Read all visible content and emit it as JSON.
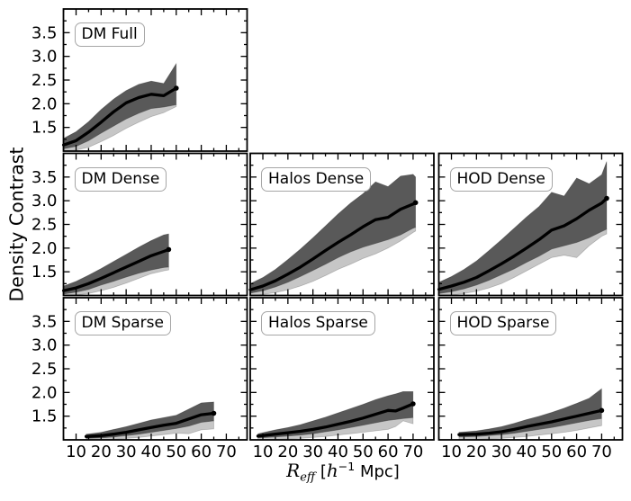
{
  "figure": {
    "ylabel": "Density Contrast",
    "xlabel_parts": {
      "r": "R",
      "sub": "eff",
      "open": " [",
      "h": "h",
      "sup": "−1",
      "close": " Mpc]"
    },
    "colors": {
      "band_dark": "#595959",
      "band_light": "#c6c6c6",
      "line": "#000000",
      "frame": "#000000",
      "label_box_border": "#a6a6a6",
      "background": "#ffffff"
    }
  },
  "chart_data": {
    "type": "line",
    "title": "",
    "xlabel": "R_eff [h^-1 Mpc]",
    "ylabel": "Density Contrast",
    "xlim": [
      4.96,
      78.3
    ],
    "ylim": [
      1.0,
      4.0
    ],
    "xticks": [
      10,
      20,
      30,
      40,
      50,
      60,
      70
    ],
    "xticklabels": [
      "10",
      "20",
      "30",
      "40",
      "50",
      "60",
      "70"
    ],
    "yticks": [
      1.5,
      2.0,
      2.5,
      3.0,
      3.5
    ],
    "yticklabels": [
      "1.5",
      "2.0",
      "2.5",
      "3.0",
      "3.5"
    ],
    "x_minor_step": 5,
    "y_minor_step": 0.25,
    "grid": false,
    "legend": "none",
    "band_description": "each panel: thick black median line, dark grey band around it, light grey band extending below",
    "panels": [
      {
        "label": "DM Full",
        "row": 0,
        "col": 0,
        "x": [
          5,
          10,
          15,
          20,
          25,
          30,
          35,
          40,
          45,
          50
        ],
        "median": [
          1.13,
          1.22,
          1.4,
          1.61,
          1.83,
          2.02,
          2.13,
          2.2,
          2.17,
          2.33
        ],
        "band_hi": [
          1.27,
          1.41,
          1.62,
          1.88,
          2.1,
          2.28,
          2.41,
          2.48,
          2.43,
          2.85
        ],
        "band_lo": [
          1.05,
          1.1,
          1.22,
          1.38,
          1.53,
          1.68,
          1.8,
          1.9,
          1.93,
          1.98
        ],
        "band_lo_light": [
          1.0,
          1.02,
          1.08,
          1.2,
          1.33,
          1.48,
          1.61,
          1.73,
          1.81,
          1.94
        ]
      },
      {
        "label": "DM Dense",
        "row": 1,
        "col": 0,
        "x": [
          5,
          10,
          15,
          20,
          25,
          30,
          35,
          40,
          45,
          47
        ],
        "median": [
          1.1,
          1.16,
          1.25,
          1.36,
          1.48,
          1.6,
          1.72,
          1.84,
          1.93,
          1.97
        ],
        "band_hi": [
          1.2,
          1.3,
          1.43,
          1.57,
          1.72,
          1.87,
          2.02,
          2.16,
          2.28,
          2.3
        ],
        "band_lo": [
          1.03,
          1.07,
          1.13,
          1.22,
          1.3,
          1.39,
          1.47,
          1.54,
          1.59,
          1.6
        ],
        "band_lo_light": [
          1.0,
          1.01,
          1.04,
          1.1,
          1.17,
          1.26,
          1.36,
          1.46,
          1.52,
          1.54
        ]
      },
      {
        "label": "Halos Dense",
        "row": 1,
        "col": 1,
        "x": [
          5,
          10,
          15,
          20,
          25,
          30,
          35,
          40,
          45,
          50,
          55,
          60,
          65,
          70,
          71
        ],
        "median": [
          1.12,
          1.2,
          1.31,
          1.45,
          1.6,
          1.77,
          1.95,
          2.12,
          2.28,
          2.45,
          2.6,
          2.65,
          2.82,
          2.93,
          2.96
        ],
        "band_hi": [
          1.25,
          1.38,
          1.55,
          1.76,
          1.98,
          2.22,
          2.47,
          2.72,
          2.95,
          3.15,
          3.4,
          3.3,
          3.52,
          3.56,
          3.5
        ],
        "band_lo": [
          1.05,
          1.1,
          1.18,
          1.28,
          1.4,
          1.53,
          1.66,
          1.8,
          1.92,
          2.02,
          2.1,
          2.18,
          2.28,
          2.42,
          2.44
        ],
        "band_lo_light": [
          1.0,
          1.02,
          1.06,
          1.12,
          1.2,
          1.3,
          1.42,
          1.55,
          1.66,
          1.78,
          1.88,
          2.0,
          2.15,
          2.33,
          2.36
        ]
      },
      {
        "label": "HOD Dense",
        "row": 1,
        "col": 2,
        "x": [
          5,
          10,
          15,
          20,
          25,
          30,
          35,
          40,
          45,
          50,
          55,
          60,
          65,
          70,
          72
        ],
        "median": [
          1.13,
          1.2,
          1.28,
          1.38,
          1.52,
          1.67,
          1.83,
          2.0,
          2.18,
          2.38,
          2.47,
          2.62,
          2.8,
          2.95,
          3.05
        ],
        "band_hi": [
          1.28,
          1.4,
          1.55,
          1.73,
          1.95,
          2.18,
          2.42,
          2.66,
          2.88,
          3.18,
          3.1,
          3.48,
          3.36,
          3.55,
          3.83
        ],
        "band_lo": [
          1.04,
          1.08,
          1.14,
          1.22,
          1.32,
          1.44,
          1.56,
          1.7,
          1.83,
          1.98,
          2.05,
          2.12,
          2.22,
          2.35,
          2.4
        ],
        "band_lo_light": [
          1.0,
          1.01,
          1.04,
          1.09,
          1.16,
          1.25,
          1.38,
          1.52,
          1.66,
          1.8,
          1.85,
          1.8,
          2.05,
          2.25,
          2.3
        ]
      },
      {
        "label": "DM Sparse",
        "row": 2,
        "col": 0,
        "x": [
          14,
          20,
          25,
          30,
          35,
          40,
          45,
          50,
          55,
          60,
          65
        ],
        "median": [
          1.07,
          1.09,
          1.12,
          1.16,
          1.21,
          1.26,
          1.31,
          1.35,
          1.44,
          1.53,
          1.56
        ],
        "band_hi": [
          1.12,
          1.16,
          1.22,
          1.28,
          1.35,
          1.42,
          1.47,
          1.52,
          1.65,
          1.78,
          1.8
        ],
        "band_lo": [
          1.03,
          1.04,
          1.06,
          1.09,
          1.12,
          1.16,
          1.2,
          1.24,
          1.29,
          1.37,
          1.4
        ],
        "band_lo_light": [
          1.0,
          1.0,
          1.01,
          1.03,
          1.05,
          1.08,
          1.11,
          1.14,
          1.13,
          1.21,
          1.23
        ]
      },
      {
        "label": "Halos Sparse",
        "row": 2,
        "col": 1,
        "x": [
          8,
          15,
          20,
          25,
          30,
          35,
          40,
          45,
          50,
          55,
          60,
          63,
          66,
          70
        ],
        "median": [
          1.08,
          1.12,
          1.15,
          1.18,
          1.22,
          1.27,
          1.33,
          1.39,
          1.46,
          1.54,
          1.62,
          1.61,
          1.67,
          1.76
        ],
        "band_hi": [
          1.13,
          1.21,
          1.26,
          1.32,
          1.4,
          1.48,
          1.57,
          1.66,
          1.75,
          1.85,
          1.93,
          1.97,
          2.02,
          2.02
        ],
        "band_lo": [
          1.04,
          1.06,
          1.08,
          1.1,
          1.13,
          1.17,
          1.21,
          1.26,
          1.31,
          1.36,
          1.41,
          1.43,
          1.45,
          1.47
        ],
        "band_lo_light": [
          1.0,
          1.01,
          1.02,
          1.03,
          1.05,
          1.07,
          1.1,
          1.13,
          1.16,
          1.19,
          1.22,
          1.28,
          1.4,
          1.34
        ]
      },
      {
        "label": "HOD Sparse",
        "row": 2,
        "col": 2,
        "x": [
          13,
          20,
          25,
          30,
          35,
          40,
          45,
          50,
          55,
          60,
          65,
          70
        ],
        "median": [
          1.11,
          1.12,
          1.14,
          1.17,
          1.22,
          1.28,
          1.33,
          1.38,
          1.44,
          1.5,
          1.56,
          1.62
        ],
        "band_hi": [
          1.16,
          1.19,
          1.23,
          1.28,
          1.35,
          1.43,
          1.5,
          1.58,
          1.67,
          1.77,
          1.88,
          2.08
        ],
        "band_lo": [
          1.06,
          1.07,
          1.09,
          1.11,
          1.14,
          1.18,
          1.22,
          1.26,
          1.31,
          1.36,
          1.41,
          1.45
        ],
        "band_lo_light": [
          1.0,
          1.01,
          1.02,
          1.03,
          1.05,
          1.07,
          1.1,
          1.13,
          1.16,
          1.2,
          1.25,
          1.3
        ]
      }
    ]
  }
}
